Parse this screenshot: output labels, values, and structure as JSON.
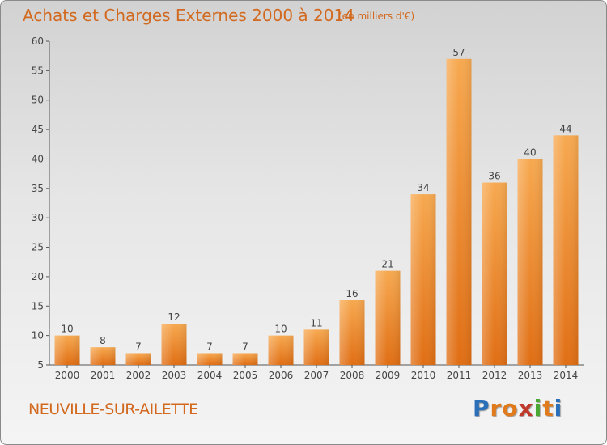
{
  "title": "Achats et Charges Externes 2000 à 2014",
  "subtitle": "(en milliers d'€)",
  "place": "NEUVILLE-SUR-AILETTE",
  "logo": {
    "letters": [
      "P",
      "r",
      "o",
      "x",
      "i",
      "t",
      "i"
    ],
    "colors": [
      "#2b6fb8",
      "#e07a1a",
      "#e07a1a",
      "#c0392b",
      "#4aa832",
      "#e07a1a",
      "#2b6fb8"
    ]
  },
  "colors": {
    "bar": "#f07f1e",
    "text": "#d2691e"
  },
  "chart_data": {
    "type": "bar",
    "title": "Achats et Charges Externes 2000 à 2014",
    "subtitle": "(en milliers d'€)",
    "categories": [
      "2000",
      "2001",
      "2002",
      "2003",
      "2004",
      "2005",
      "2006",
      "2007",
      "2008",
      "2009",
      "2010",
      "2011",
      "2012",
      "2013",
      "2014"
    ],
    "values": [
      10,
      8,
      7,
      12,
      7,
      7,
      10,
      11,
      16,
      21,
      34,
      57,
      36,
      40,
      44
    ],
    "ylim": [
      5,
      60
    ],
    "yticks": [
      5,
      10,
      15,
      20,
      25,
      30,
      35,
      40,
      45,
      50,
      55,
      60
    ],
    "grid": false,
    "xlabel": "",
    "ylabel": ""
  }
}
